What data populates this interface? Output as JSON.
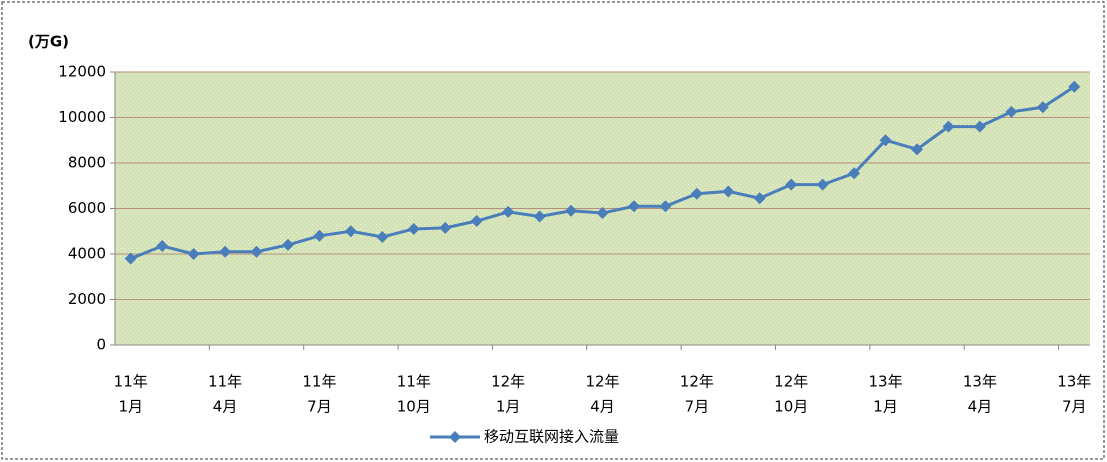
{
  "chart_data": {
    "type": "line",
    "y_label": "(万G)",
    "categories": [
      [
        "11年",
        "1月"
      ],
      null,
      null,
      [
        "11年",
        "4月"
      ],
      null,
      null,
      [
        "11年",
        "7月"
      ],
      null,
      null,
      [
        "11年",
        "10月"
      ],
      null,
      null,
      [
        "12年",
        "1月"
      ],
      null,
      null,
      [
        "12年",
        "4月"
      ],
      null,
      null,
      [
        "12年",
        "7月"
      ],
      null,
      null,
      [
        "12年",
        "10月"
      ],
      null,
      null,
      [
        "13年",
        "1月"
      ],
      null,
      null,
      [
        "13年",
        "4月"
      ],
      null,
      null,
      [
        "13年",
        "7月"
      ]
    ],
    "series": [
      {
        "name": "移动互联网接入流量",
        "color": "#4a7ebb",
        "values": [
          3800,
          4350,
          4000,
          4100,
          4100,
          4400,
          4800,
          5000,
          4750,
          5100,
          5150,
          5450,
          5850,
          5650,
          5900,
          5800,
          6100,
          6100,
          6650,
          6750,
          6450,
          7050,
          7050,
          7550,
          9000,
          8600,
          9600,
          9600,
          10250,
          10450,
          11350
        ]
      }
    ],
    "ylim": [
      0,
      12000
    ],
    "yticks": [
      0,
      2000,
      4000,
      6000,
      8000,
      10000,
      12000
    ],
    "grid": true,
    "legend": "bottom"
  }
}
